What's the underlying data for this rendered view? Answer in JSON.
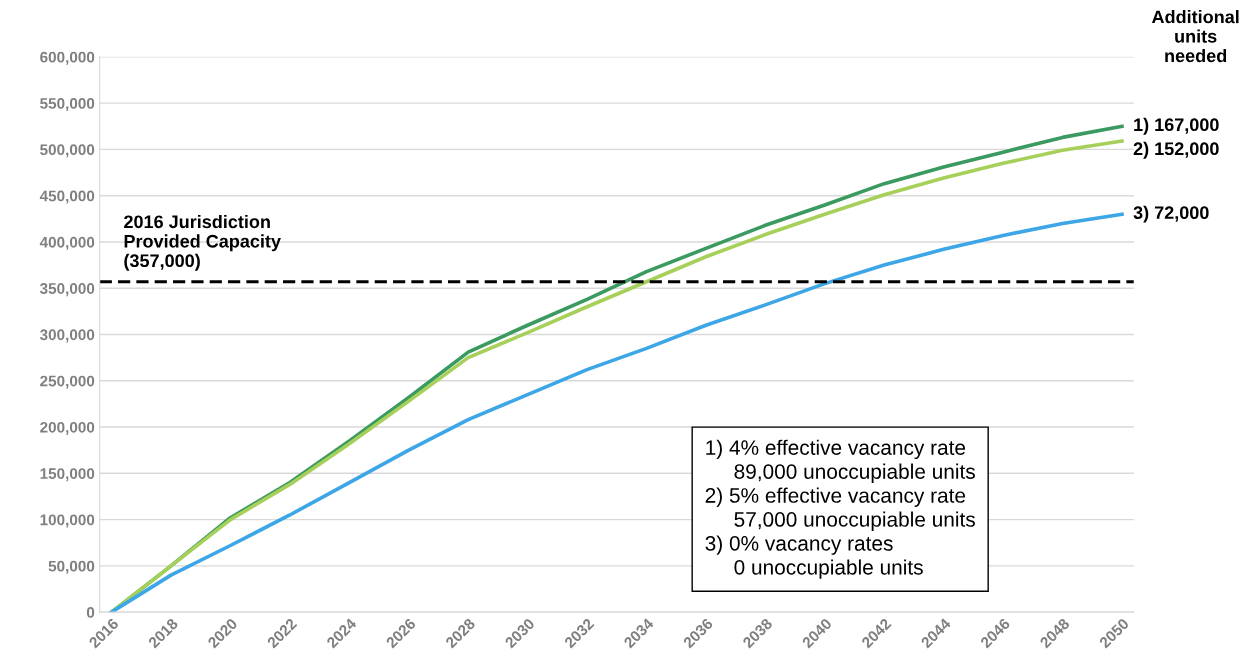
{
  "chart_data": {
    "type": "line",
    "x": [
      2016,
      2018,
      2020,
      2022,
      2024,
      2026,
      2028,
      2030,
      2032,
      2034,
      2036,
      2038,
      2040,
      2042,
      2044,
      2046,
      2048,
      2050
    ],
    "series": [
      {
        "color": "#3a9a5f",
        "values": [
          0,
          50000,
          102000,
          140000,
          185000,
          232000,
          281000,
          310000,
          338000,
          368000,
          393000,
          418000,
          440000,
          463000,
          481000,
          497000,
          513000,
          525000
        ]
      },
      {
        "color": "#a6d05a",
        "values": [
          0,
          50000,
          100000,
          138000,
          182000,
          228000,
          275000,
          302000,
          330000,
          357000,
          384000,
          408000,
          430000,
          451000,
          469000,
          485000,
          499000,
          509000
        ]
      },
      {
        "color": "#3ca6e6",
        "values": [
          0,
          40000,
          72000,
          105000,
          140000,
          175000,
          208000,
          235000,
          262000,
          285000,
          310000,
          332000,
          355000,
          375000,
          392000,
          407000,
          420000,
          430000
        ]
      }
    ],
    "xlim": [
      2015.6,
      2050.4
    ],
    "xticks": [
      2016,
      2018,
      2020,
      2022,
      2024,
      2026,
      2028,
      2030,
      2032,
      2034,
      2036,
      2038,
      2040,
      2042,
      2044,
      2046,
      2048,
      2050
    ],
    "ylim": [
      0,
      600000
    ],
    "yticks": [
      {
        "value": 0,
        "label": "0"
      },
      {
        "value": 50000,
        "label": "50,000"
      },
      {
        "value": 100000,
        "label": "100,000"
      },
      {
        "value": 150000,
        "label": "150,000"
      },
      {
        "value": 200000,
        "label": "200,000"
      },
      {
        "value": 250000,
        "label": "250,000"
      },
      {
        "value": 300000,
        "label": "300,000"
      },
      {
        "value": 350000,
        "label": "350,000"
      },
      {
        "value": 400000,
        "label": "400,000"
      },
      {
        "value": 450000,
        "label": "450,000"
      },
      {
        "value": 500000,
        "label": "500,000"
      },
      {
        "value": 550000,
        "label": "550,000"
      },
      {
        "value": 600000,
        "label": "600,000"
      }
    ],
    "grid": "y",
    "marker": "none",
    "line_style": "solid",
    "ref_lines": [
      {
        "axis": "y",
        "value": 357000,
        "label": "2016 Jurisdiction\nProvided Capacity\n(357,000)",
        "color": "#000000",
        "line_style": "dashed"
      }
    ],
    "annotations": [
      "Additional\nunits\nneeded",
      "1) 167,000",
      "2) 152,000",
      "3) 72,000",
      "1) 4% effective vacancy rate\n     89,000 unoccupiable units\n2) 5% effective vacancy rate\n     57,000 unoccupiable units\n3) 0% vacancy rates\n     0 unoccupiable units"
    ]
  }
}
